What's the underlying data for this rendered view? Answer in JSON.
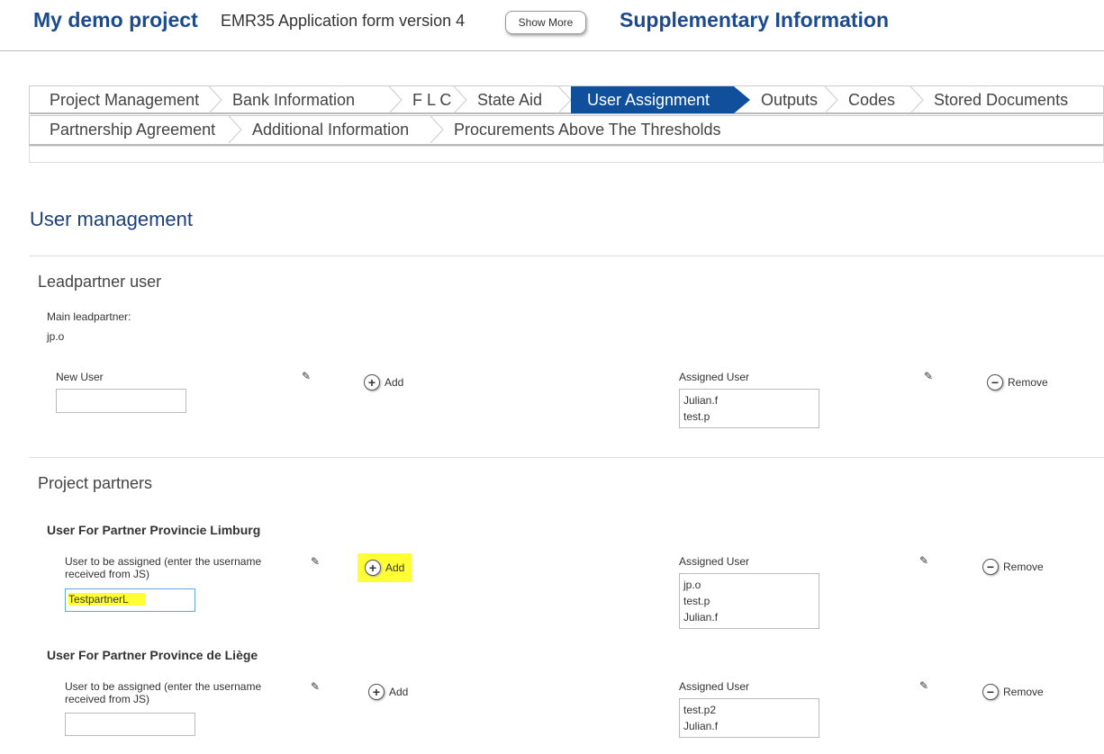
{
  "header": {
    "project": "My demo project",
    "form": "EMR35 Application form version 4",
    "show_more": "Show More",
    "section": "Supplementary Information"
  },
  "tabs_row1": [
    {
      "label": "Project Management"
    },
    {
      "label": "Bank Information"
    },
    {
      "label": "F L C"
    },
    {
      "label": "State Aid"
    },
    {
      "label": "User Assignment",
      "active": true
    },
    {
      "label": "Outputs"
    },
    {
      "label": "Codes"
    },
    {
      "label": "Stored Documents"
    }
  ],
  "tabs_row2": [
    {
      "label": "Partnership Agreement"
    },
    {
      "label": "Additional Information"
    },
    {
      "label": "Procurements Above The Thresholds"
    }
  ],
  "accent": "#0f4f9c",
  "page_title": "User management",
  "lead": {
    "heading": "Leadpartner user",
    "main_label": "Main leadpartner:",
    "main_value": "jp.o",
    "new_user_label": "New User",
    "new_user_value": "",
    "add": "Add",
    "assigned_label": "Assigned User",
    "assigned": [
      "Julian.f",
      "test.p"
    ],
    "remove": "Remove"
  },
  "partners": {
    "heading": "Project partners",
    "items": [
      {
        "title": "User For Partner Provincie Limburg",
        "field_label": "User to be assigned (enter the username received from JS)",
        "value": "TestpartnerL",
        "add": "Add",
        "assigned_label": "Assigned User",
        "assigned": [
          "jp.o",
          "test.p",
          "Julian.f"
        ],
        "remove": "Remove"
      },
      {
        "title": "User For Partner Province de Liège",
        "field_label": "User to be assigned (enter the username received from JS)",
        "value": "",
        "add": "Add",
        "assigned_label": "Assigned User",
        "assigned": [
          "test.p2",
          "Julian.f"
        ],
        "remove": "Remove"
      }
    ]
  }
}
